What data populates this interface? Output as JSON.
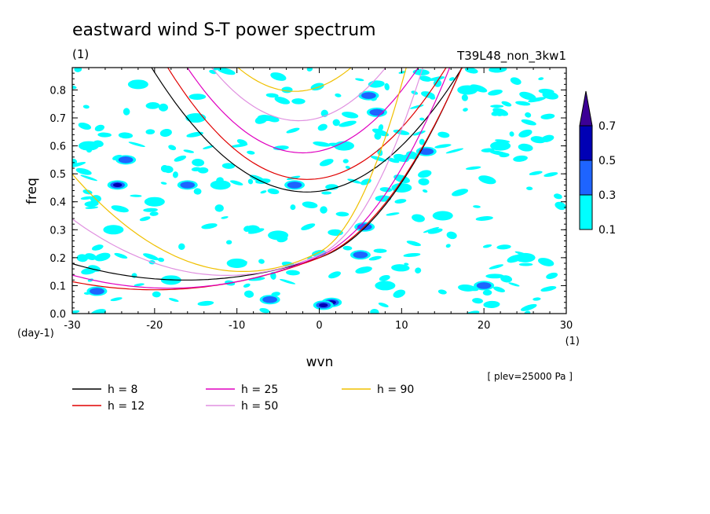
{
  "chart_data": {
    "type": "heatmap",
    "title": "eastward wind S-T power spectrum",
    "title_unit": "(1)",
    "run_label": "T39L48_non_3kw1",
    "xlabel": "wvn",
    "ylabel": "freq",
    "x_unit": "(1)",
    "y_unit": "(day-1)",
    "xlim": [
      -30,
      30
    ],
    "ylim": [
      0.0,
      0.88
    ],
    "x_ticks": [
      -30,
      -20,
      -10,
      0,
      10,
      20,
      30
    ],
    "x_tick_labels": [
      "-30",
      "-20",
      "-10",
      "0",
      "10",
      "20",
      "30"
    ],
    "y_ticks": [
      0.0,
      0.1,
      0.2,
      0.3,
      0.4,
      0.5,
      0.6,
      0.7,
      0.8
    ],
    "y_tick_labels": [
      "0.0",
      "0.1",
      "0.2",
      "0.3",
      "0.4",
      "0.5",
      "0.6",
      "0.7",
      "0.8"
    ],
    "level_note": "[ plev=25000 Pa ]",
    "colorbar": {
      "levels": [
        "0.1",
        "0.3",
        "0.5",
        "0.7"
      ],
      "colors": [
        "#00ffff",
        "#1e64ff",
        "#0000b4",
        "#3c0096"
      ]
    },
    "dispersion_curves": [
      {
        "label": "h =  8",
        "color": "#000000"
      },
      {
        "label": "h = 12",
        "color": "#e00000"
      },
      {
        "label": "h = 25",
        "color": "#e000c0"
      },
      {
        "label": "h = 50",
        "color": "#e090e0"
      },
      {
        "label": "h = 90",
        "color": "#f0c000"
      }
    ],
    "power_blobs": [
      {
        "x": 1.5,
        "y": 0.04,
        "level": 3
      },
      {
        "x": 0.5,
        "y": 0.03,
        "level": 2
      },
      {
        "x": -24.5,
        "y": 0.46,
        "level": 2
      },
      {
        "x": -23.5,
        "y": 0.55,
        "level": 1
      },
      {
        "x": 5,
        "y": 0.21,
        "level": 1
      },
      {
        "x": 13,
        "y": 0.58,
        "level": 1
      },
      {
        "x": 5.5,
        "y": 0.31,
        "level": 1
      },
      {
        "x": 7,
        "y": 0.72,
        "level": 1
      },
      {
        "x": -6,
        "y": 0.05,
        "level": 1
      },
      {
        "x": 6,
        "y": 0.78,
        "level": 1
      },
      {
        "x": -3,
        "y": 0.46,
        "level": 1
      },
      {
        "x": -16,
        "y": 0.46,
        "level": 1
      },
      {
        "x": 20,
        "y": 0.1,
        "level": 1
      },
      {
        "x": -27,
        "y": 0.08,
        "level": 1
      },
      {
        "x": -12,
        "y": 0.46,
        "level": 0
      },
      {
        "x": -20,
        "y": 0.4,
        "level": 0
      },
      {
        "x": -25,
        "y": 0.3,
        "level": 0
      },
      {
        "x": -10,
        "y": 0.18,
        "level": 0
      },
      {
        "x": -18,
        "y": 0.12,
        "level": 0
      },
      {
        "x": -5,
        "y": 0.28,
        "level": 0
      },
      {
        "x": 10,
        "y": 0.45,
        "level": 0
      },
      {
        "x": 15,
        "y": 0.35,
        "level": 0
      },
      {
        "x": 22,
        "y": 0.6,
        "level": 0
      },
      {
        "x": 25,
        "y": 0.2,
        "level": 0
      },
      {
        "x": -28,
        "y": 0.6,
        "level": 0
      },
      {
        "x": -15,
        "y": 0.7,
        "level": 0
      },
      {
        "x": 3,
        "y": 0.6,
        "level": 0
      },
      {
        "x": 18,
        "y": 0.8,
        "level": 0
      },
      {
        "x": -22,
        "y": 0.82,
        "level": 0
      },
      {
        "x": 8,
        "y": 0.1,
        "level": 0
      }
    ]
  }
}
